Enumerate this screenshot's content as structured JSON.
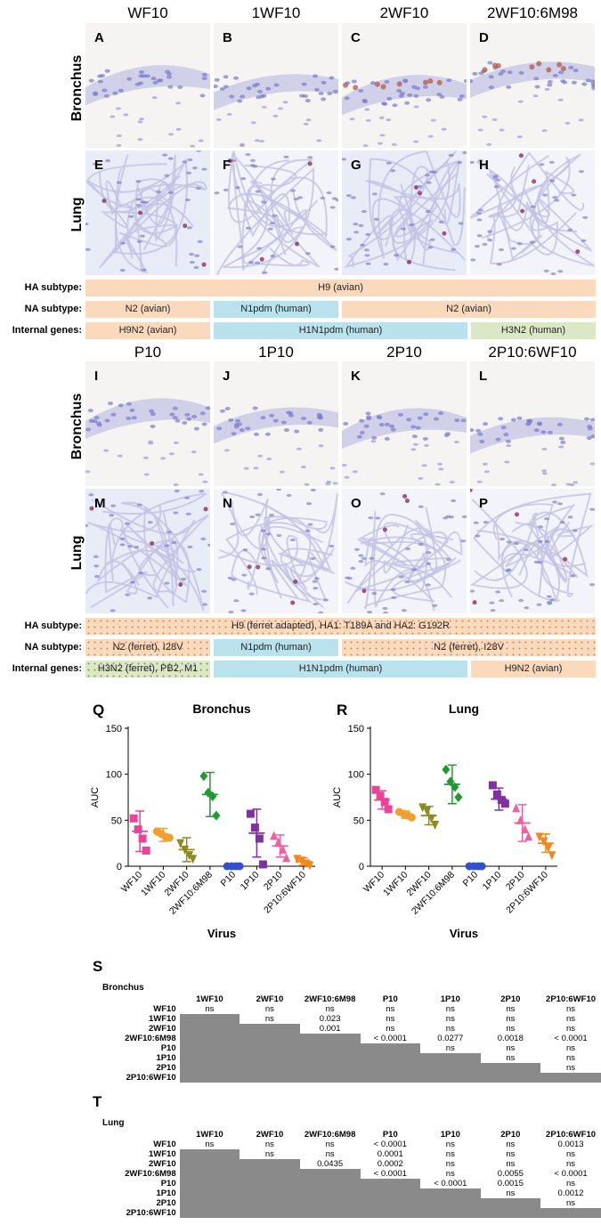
{
  "top_columns": [
    "WF10",
    "1WF10",
    "2WF10",
    "2WF10:6M98"
  ],
  "bottom_columns": [
    "P10",
    "1P10",
    "2P10",
    "2P10:6WF10"
  ],
  "row_labels": {
    "bronchus": "Bronchus",
    "lung": "Lung"
  },
  "top_panels": [
    "A",
    "B",
    "C",
    "D",
    "E",
    "F",
    "G",
    "H"
  ],
  "bottom_panels": [
    "I",
    "J",
    "K",
    "L",
    "M",
    "N",
    "O",
    "P"
  ],
  "strip_labels": {
    "ha": "HA subtype:",
    "na": "NA subtype:",
    "internal": "Internal genes:"
  },
  "top_strips": {
    "ha": [
      "H9 (avian)"
    ],
    "na": [
      "N2 (avian)",
      "N1pdm (human)",
      "N2 (avian)"
    ],
    "internal": [
      "H9N2 (avian)",
      "H1N1pdm (human)",
      "H3N2 (human)"
    ]
  },
  "bottom_strips": {
    "ha": [
      "H9 (ferret adapted), HA1: T189A and HA2: G192R"
    ],
    "na": [
      "N2 (ferret), I28V",
      "N1pdm (human)",
      "N2 (ferret), I28V"
    ],
    "internal": [
      "H3N2 (ferret), PB2, M1",
      "H1N1pdm (human)",
      "H9N2 (avian)"
    ]
  },
  "colors": {
    "orange": "#fbd9bd",
    "blue": "#b9e2ec",
    "green": "#dbe8c6",
    "grey": "#8a8a8a"
  },
  "chart_letters": {
    "q": "Q",
    "r": "R",
    "s": "S",
    "t": "T"
  },
  "chart_data": [
    {
      "type": "scatter",
      "title": "Bronchus",
      "ylabel": "AUC",
      "xlabel": "Virus",
      "ylim": [
        0,
        150
      ],
      "yticks": [
        0,
        50,
        100,
        150
      ],
      "categories": [
        "WF10",
        "1WF10",
        "2WF10",
        "2WF10:6M98",
        "P10",
        "1P10",
        "2P10",
        "2P10:6WF10"
      ],
      "marker_colors": [
        "#e8459a",
        "#f0a030",
        "#8c8a20",
        "#209a30",
        "#3050d0",
        "#8030a0",
        "#f060a0",
        "#f08820"
      ],
      "markers": [
        "square",
        "circle",
        "triangle-down",
        "diamond",
        "circle",
        "square",
        "triangle-up",
        "triangle-down"
      ],
      "series": [
        {
          "name": "WF10",
          "mean": 38,
          "sd": 22,
          "points": [
            52,
            40,
            30,
            17
          ]
        },
        {
          "name": "1WF10",
          "mean": 34,
          "sd": 7,
          "points": [
            38,
            35,
            32,
            31
          ]
        },
        {
          "name": "2WF10",
          "mean": 18,
          "sd": 13,
          "points": [
            25,
            18,
            12,
            8
          ]
        },
        {
          "name": "2WF10:6M98",
          "mean": 78,
          "sd": 24,
          "points": [
            98,
            80,
            76,
            55
          ]
        },
        {
          "name": "P10",
          "mean": 0,
          "sd": 0,
          "points": [
            0,
            0,
            0,
            0
          ]
        },
        {
          "name": "1P10",
          "mean": 36,
          "sd": 26,
          "points": [
            57,
            42,
            30,
            2
          ]
        },
        {
          "name": "2P10",
          "mean": 22,
          "sd": 12,
          "points": [
            33,
            26,
            18,
            9
          ]
        },
        {
          "name": "2P10:6WF10",
          "mean": 5,
          "sd": 4,
          "points": [
            8,
            6,
            3,
            1
          ]
        }
      ]
    },
    {
      "type": "scatter",
      "title": "Lung",
      "ylabel": "AUC",
      "xlabel": "Virus",
      "ylim": [
        0,
        150
      ],
      "yticks": [
        0,
        50,
        100,
        150
      ],
      "categories": [
        "WF10",
        "1WF10",
        "2WF10",
        "2WF10:6M98",
        "P10",
        "1P10",
        "2P10",
        "2P10:6WF10"
      ],
      "marker_colors": [
        "#e8459a",
        "#f0a030",
        "#8c8a20",
        "#209a30",
        "#3050d0",
        "#8030a0",
        "#f060a0",
        "#f08820"
      ],
      "markers": [
        "square",
        "circle",
        "triangle-down",
        "diamond",
        "circle",
        "square",
        "triangle-up",
        "triangle-down"
      ],
      "series": [
        {
          "name": "WF10",
          "mean": 72,
          "sd": 10,
          "points": [
            83,
            76,
            70,
            62
          ]
        },
        {
          "name": "1WF10",
          "mean": 56,
          "sd": 4,
          "points": [
            59,
            57,
            55,
            53
          ]
        },
        {
          "name": "2WF10",
          "mean": 55,
          "sd": 10,
          "points": [
            64,
            60,
            52,
            45
          ]
        },
        {
          "name": "2WF10:6M98",
          "mean": 89,
          "sd": 21,
          "points": [
            105,
            92,
            86,
            75
          ]
        },
        {
          "name": "P10",
          "mean": 0,
          "sd": 0,
          "points": [
            0,
            0,
            0,
            0
          ]
        },
        {
          "name": "1P10",
          "mean": 73,
          "sd": 12,
          "points": [
            88,
            78,
            72,
            68
          ]
        },
        {
          "name": "2P10",
          "mean": 47,
          "sd": 20,
          "points": [
            63,
            50,
            40,
            32
          ]
        },
        {
          "name": "2P10:6WF10",
          "mean": 25,
          "sd": 10,
          "points": [
            32,
            27,
            20,
            12
          ]
        }
      ]
    },
    {
      "type": "table",
      "title": "Bronchus",
      "columns": [
        "1WF10",
        "2WF10",
        "2WF10:6M98",
        "P10",
        "1P10",
        "2P10",
        "2P10:6WF10"
      ],
      "rows": [
        {
          "label": "WF10",
          "values": [
            "ns",
            "ns",
            "ns",
            "ns",
            "ns",
            "ns",
            "ns"
          ]
        },
        {
          "label": "1WF10",
          "values": [
            "ns",
            "0.023",
            "ns",
            "ns",
            "ns",
            "ns"
          ]
        },
        {
          "label": "2WF10",
          "values": [
            "0.001",
            "ns",
            "ns",
            "ns",
            "ns"
          ]
        },
        {
          "label": "2WF10:6M98",
          "values": [
            "< 0.0001",
            "0.0277",
            "0.0018",
            "< 0.0001"
          ]
        },
        {
          "label": "P10",
          "values": [
            "ns",
            "ns",
            "ns"
          ]
        },
        {
          "label": "1P10",
          "values": [
            "ns",
            "ns"
          ]
        },
        {
          "label": "2P10",
          "values": [
            "ns"
          ]
        },
        {
          "label": "2P10:6WF10",
          "values": []
        }
      ]
    },
    {
      "type": "table",
      "title": "Lung",
      "columns": [
        "1WF10",
        "2WF10",
        "2WF10:6M98",
        "P10",
        "1P10",
        "2P10",
        "2P10:6WF10"
      ],
      "rows": [
        {
          "label": "WF10",
          "values": [
            "ns",
            "ns",
            "ns",
            "< 0.0001",
            "ns",
            "ns",
            "0.0013"
          ]
        },
        {
          "label": "1WF10",
          "values": [
            "ns",
            "ns",
            "0.0001",
            "ns",
            "ns",
            "ns"
          ]
        },
        {
          "label": "2WF10",
          "values": [
            "0.0435",
            "0.0002",
            "ns",
            "ns",
            "ns"
          ]
        },
        {
          "label": "2WF10:6M98",
          "values": [
            "< 0.0001",
            "ns",
            "0.0055",
            "< 0.0001"
          ]
        },
        {
          "label": "P10",
          "values": [
            "< 0.0001",
            "0.0015",
            "ns"
          ]
        },
        {
          "label": "1P10",
          "values": [
            "ns",
            "0.0012"
          ]
        },
        {
          "label": "2P10",
          "values": [
            "ns"
          ]
        },
        {
          "label": "2P10:6WF10",
          "values": []
        }
      ]
    }
  ]
}
